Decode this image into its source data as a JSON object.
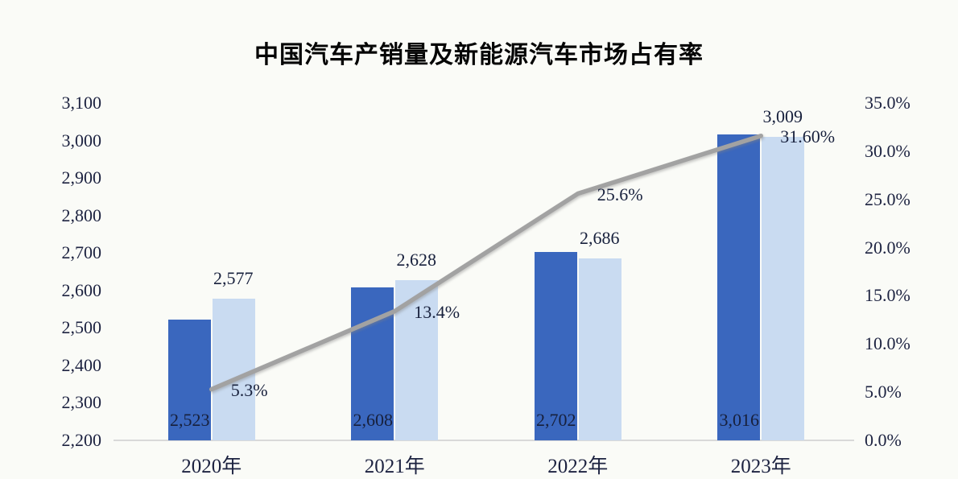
{
  "page": {
    "background": "#FAFBF7"
  },
  "chart_data": {
    "type": "bar",
    "subtype": "combo-bar-line-dual-axis",
    "title": "中国汽车产销量及新能源汽车市场占有率",
    "categories": [
      "2020年",
      "2021年",
      "2022年",
      "2023年"
    ],
    "bar_series": [
      {
        "id": "dark-blue-bars",
        "color": "#3A67BE",
        "values": [
          2523,
          2608,
          2702,
          3016
        ],
        "labels": [
          "2,523",
          "2,608",
          "2,702",
          "3,016"
        ],
        "label_position": "inside-base"
      },
      {
        "id": "light-blue-bars",
        "color": "#C9DBF1",
        "values": [
          2577,
          2628,
          2686,
          3009
        ],
        "labels": [
          "2,577",
          "2,628",
          "2,686",
          "3,009"
        ],
        "label_position": "outside-top"
      }
    ],
    "line_series": {
      "id": "market-share-line",
      "color": "#A2A2A2",
      "axis": "right",
      "values": [
        5.3,
        13.4,
        25.6,
        31.6
      ],
      "labels": [
        "5.3%",
        "13.4%",
        "25.6%",
        "31.60%"
      ]
    },
    "left_axis": {
      "min": 2200,
      "max": 3100,
      "step": 100,
      "ticks": [
        "3,100",
        "3,000",
        "2,900",
        "2,800",
        "2,700",
        "2,600",
        "2,500",
        "2,400",
        "2,300",
        "2,200"
      ]
    },
    "right_axis": {
      "min": 0,
      "max": 35,
      "step": 5,
      "ticks": [
        "35.0%",
        "30.0%",
        "25.0%",
        "20.0%",
        "15.0%",
        "10.0%",
        "5.0%",
        "0.0%"
      ]
    },
    "legend": "none",
    "grid": false,
    "colors": {
      "axis_line": "#D9D9D9",
      "tick_text": "#1C2240",
      "label_text": "#17203C",
      "title_text": "#050505"
    }
  }
}
